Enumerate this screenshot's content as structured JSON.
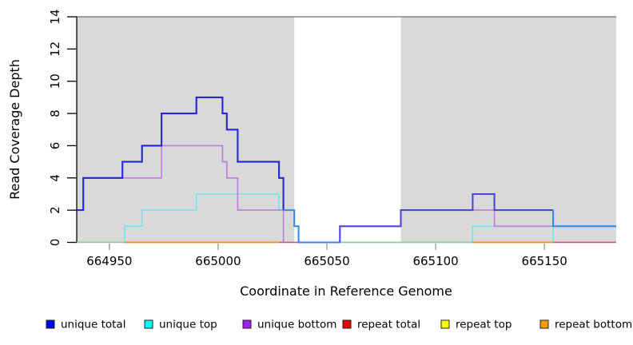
{
  "figure": {
    "background": "#ffffff",
    "plot_bg_shaded": "#d9d9d9",
    "top_border_color": "#6e6e6e"
  },
  "axes": {
    "xlabel": "Coordinate in Reference Genome",
    "ylabel": "Read Coverage Depth",
    "yticks": [
      "0",
      "2",
      "4",
      "6",
      "8",
      "10",
      "12",
      "14"
    ],
    "xticks": [
      "664950",
      "665000",
      "665050",
      "665100",
      "665150"
    ]
  },
  "legend": {
    "items": [
      {
        "label": "unique total",
        "color": "#0000ee",
        "icon": "legend-square-blue"
      },
      {
        "label": "unique top",
        "color": "#00ffff",
        "icon": "legend-square-cyan"
      },
      {
        "label": "unique bottom",
        "color": "#a020f0",
        "icon": "legend-square-purple"
      },
      {
        "label": "repeat total",
        "color": "#ee0000",
        "icon": "legend-square-red"
      },
      {
        "label": "repeat top",
        "color": "#ffff00",
        "icon": "legend-square-yellow"
      },
      {
        "label": "repeat bottom",
        "color": "#ff9900",
        "icon": "legend-square-orange"
      }
    ]
  },
  "chart_data": {
    "type": "line",
    "step": true,
    "title": "",
    "xlabel": "Coordinate in Reference Genome",
    "ylabel": "Read Coverage Depth",
    "xlim": [
      664935,
      665183
    ],
    "ylim": [
      0,
      14
    ],
    "xticks": [
      664950,
      665000,
      665050,
      665100,
      665150
    ],
    "yticks": [
      0,
      2,
      4,
      6,
      8,
      10,
      12,
      14
    ],
    "grid": false,
    "legend_position": "bottom",
    "shaded_regions": [
      {
        "x0": 664935,
        "x1": 665035
      },
      {
        "x0": 665084,
        "x1": 665183
      }
    ],
    "top_border_depth": 14,
    "series": [
      {
        "name": "unique total",
        "color": "#0000ee",
        "steps": [
          [
            664935,
            2
          ],
          [
            664938,
            4
          ],
          [
            664956,
            5
          ],
          [
            664965,
            6
          ],
          [
            664974,
            8
          ],
          [
            664990,
            9
          ],
          [
            665002,
            8
          ],
          [
            665004,
            7
          ],
          [
            665009,
            5
          ],
          [
            665028,
            4
          ],
          [
            665030,
            2
          ],
          [
            665035,
            1
          ],
          [
            665037,
            0
          ],
          [
            665056,
            1
          ],
          [
            665084,
            2
          ],
          [
            665117,
            3
          ],
          [
            665127,
            2
          ],
          [
            665154,
            1
          ],
          [
            665183,
            1
          ]
        ]
      },
      {
        "name": "unique top",
        "color": "#00ffff",
        "steps": [
          [
            664935,
            0
          ],
          [
            664957,
            1
          ],
          [
            664965,
            2
          ],
          [
            664990,
            3
          ],
          [
            665028,
            2
          ],
          [
            665035,
            1
          ],
          [
            665037,
            0
          ],
          [
            665117,
            1
          ],
          [
            665154,
            0
          ],
          [
            665183,
            0
          ]
        ]
      },
      {
        "name": "unique bottom",
        "color": "#a020f0",
        "steps": [
          [
            664935,
            2
          ],
          [
            664938,
            4
          ],
          [
            664974,
            6
          ],
          [
            665002,
            5
          ],
          [
            665004,
            4
          ],
          [
            665009,
            2
          ],
          [
            665030,
            0
          ],
          [
            665056,
            1
          ],
          [
            665084,
            2
          ],
          [
            665127,
            1
          ],
          [
            665183,
            1
          ]
        ]
      },
      {
        "name": "repeat total",
        "color": "#ee0000",
        "steps": [
          [
            664935,
            0
          ],
          [
            665183,
            0
          ]
        ]
      },
      {
        "name": "repeat top",
        "color": "#ffff00",
        "steps": [
          [
            664935,
            0
          ],
          [
            665183,
            0
          ]
        ]
      },
      {
        "name": "repeat bottom",
        "color": "#ff9900",
        "steps": [
          [
            664935,
            0
          ],
          [
            665183,
            0
          ]
        ]
      }
    ],
    "polylines": [
      {
        "name": "unique-top-line",
        "color": "#72e5e8",
        "width": 1.6,
        "points": [
          [
            664957,
            0
          ],
          [
            664957,
            1
          ],
          [
            664965,
            1
          ],
          [
            664965,
            2
          ],
          [
            664990,
            2
          ],
          [
            664990,
            3
          ],
          [
            665028,
            3
          ],
          [
            665028,
            2
          ],
          [
            665035,
            2
          ],
          [
            665035,
            1
          ],
          [
            665037,
            1
          ],
          [
            665037,
            0
          ],
          [
            665117,
            0
          ],
          [
            665117,
            1
          ],
          [
            665154,
            1
          ],
          [
            665154,
            0
          ]
        ]
      },
      {
        "name": "overlap-green-line-left",
        "color": "#8fca92",
        "width": 1.6,
        "points": [
          [
            664935,
            0
          ],
          [
            664957,
            0
          ]
        ]
      },
      {
        "name": "overlap-green-line-mid",
        "color": "#8fca92",
        "width": 1.6,
        "points": [
          [
            665056,
            0
          ],
          [
            665117,
            0
          ]
        ]
      },
      {
        "name": "repeat-bottom-line-left",
        "color": "#ff8c00",
        "width": 1.8,
        "points": [
          [
            664957,
            0
          ],
          [
            665028,
            0
          ]
        ]
      },
      {
        "name": "repeat-bottom-line-right",
        "color": "#ff8c00",
        "width": 1.8,
        "points": [
          [
            665117,
            0
          ],
          [
            665154,
            0
          ]
        ]
      },
      {
        "name": "overlap-crimson-line-left",
        "color": "#cf4a70",
        "width": 1.6,
        "points": [
          [
            665028,
            0
          ],
          [
            665037,
            0
          ]
        ]
      },
      {
        "name": "overlap-crimson-line-right",
        "color": "#cf4a70",
        "width": 1.6,
        "points": [
          [
            665154,
            0
          ],
          [
            665183,
            0
          ]
        ]
      },
      {
        "name": "unique-bottom-line-a",
        "color": "#bf7be1",
        "width": 1.6,
        "points": [
          [
            664935,
            2
          ],
          [
            664938,
            2
          ],
          [
            664938,
            4
          ],
          [
            664974,
            4
          ],
          [
            664974,
            6
          ],
          [
            665002,
            6
          ],
          [
            665002,
            5
          ],
          [
            665004,
            5
          ],
          [
            665004,
            4
          ],
          [
            665009,
            4
          ],
          [
            665009,
            2
          ],
          [
            665030,
            2
          ],
          [
            665030,
            0
          ]
        ]
      },
      {
        "name": "unique-bottom-line-b",
        "color": "#bf7be1",
        "width": 1.6,
        "points": [
          [
            665037,
            0
          ],
          [
            665056,
            0
          ],
          [
            665056,
            1
          ],
          [
            665084,
            1
          ],
          [
            665084,
            2
          ],
          [
            665127,
            2
          ],
          [
            665127,
            1
          ],
          [
            665183,
            1
          ]
        ]
      },
      {
        "name": "unique-total-line-main",
        "color": "#2626d8",
        "width": 2.1,
        "points": [
          [
            664935,
            2
          ],
          [
            664938,
            2
          ],
          [
            664938,
            4
          ],
          [
            664956,
            4
          ],
          [
            664956,
            5
          ],
          [
            664965,
            5
          ],
          [
            664965,
            6
          ],
          [
            664974,
            6
          ],
          [
            664974,
            8
          ],
          [
            664990,
            8
          ],
          [
            664990,
            9
          ],
          [
            665002,
            9
          ],
          [
            665002,
            8
          ],
          [
            665004,
            8
          ],
          [
            665004,
            7
          ],
          [
            665009,
            7
          ],
          [
            665009,
            5
          ],
          [
            665028,
            5
          ],
          [
            665028,
            4
          ],
          [
            665030,
            4
          ],
          [
            665030,
            2
          ]
        ]
      },
      {
        "name": "unique-total-line-descent",
        "color": "#3a86ec",
        "width": 2.0,
        "points": [
          [
            665030,
            2
          ],
          [
            665035,
            2
          ],
          [
            665035,
            1
          ],
          [
            665037,
            1
          ],
          [
            665037,
            0
          ],
          [
            665056,
            0
          ]
        ]
      },
      {
        "name": "unique-total-line-right",
        "color": "#4f46d8",
        "width": 2.1,
        "points": [
          [
            665056,
            0
          ],
          [
            665056,
            1
          ],
          [
            665084,
            1
          ],
          [
            665084,
            2
          ],
          [
            665117,
            2
          ],
          [
            665117,
            3
          ],
          [
            665127,
            3
          ],
          [
            665127,
            2
          ],
          [
            665154,
            2
          ]
        ]
      },
      {
        "name": "unique-total-line-tail",
        "color": "#2e86f0",
        "width": 2.0,
        "points": [
          [
            665154,
            2
          ],
          [
            665154,
            1
          ],
          [
            665183,
            1
          ]
        ]
      }
    ]
  }
}
